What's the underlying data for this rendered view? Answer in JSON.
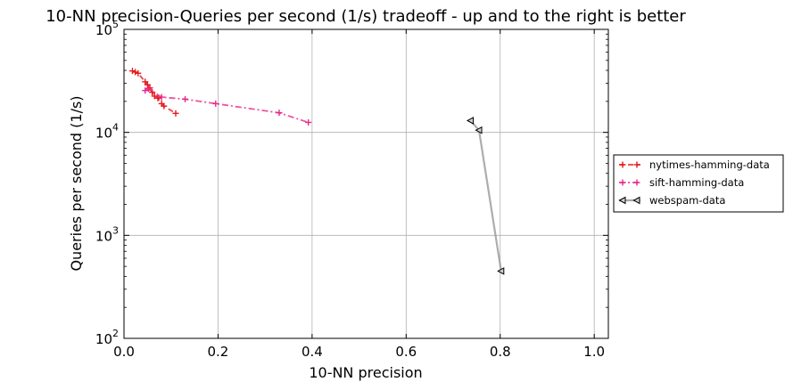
{
  "chart_data": {
    "type": "scatter",
    "title": "10-NN precision-Queries per second (1/s) tradeoff - up and to the right is better",
    "xlabel": "10-NN precision",
    "ylabel": "Queries per second (1/s)",
    "xlim": [
      0.0,
      1.03
    ],
    "ylim": [
      100,
      100000
    ],
    "yscale": "log",
    "grid": true,
    "legend_position": "right",
    "x_ticks": [
      {
        "value": 0.0,
        "label": "0.0"
      },
      {
        "value": 0.2,
        "label": "0.2"
      },
      {
        "value": 0.4,
        "label": "0.4"
      },
      {
        "value": 0.6,
        "label": "0.6"
      },
      {
        "value": 0.8,
        "label": "0.8"
      },
      {
        "value": 1.0,
        "label": "1.0"
      }
    ],
    "y_ticks": [
      {
        "value": 100,
        "base": "10",
        "exp": "2"
      },
      {
        "value": 1000,
        "base": "10",
        "exp": "3"
      },
      {
        "value": 10000,
        "base": "10",
        "exp": "4"
      },
      {
        "value": 100000,
        "base": "10",
        "exp": "5"
      }
    ],
    "series": [
      {
        "name": "nytimes-hamming-data",
        "color": "#e41a1c",
        "marker": "plus",
        "line": "dashed",
        "points": [
          {
            "x": 0.018,
            "y": 39500
          },
          {
            "x": 0.024,
            "y": 38500
          },
          {
            "x": 0.03,
            "y": 37500
          },
          {
            "x": 0.045,
            "y": 31000
          },
          {
            "x": 0.05,
            "y": 29000
          },
          {
            "x": 0.055,
            "y": 27000
          },
          {
            "x": 0.06,
            "y": 24500
          },
          {
            "x": 0.065,
            "y": 22500
          },
          {
            "x": 0.072,
            "y": 21500
          },
          {
            "x": 0.08,
            "y": 19000
          },
          {
            "x": 0.085,
            "y": 18000
          },
          {
            "x": 0.11,
            "y": 15300
          }
        ]
      },
      {
        "name": "sift-hamming-data",
        "color": "#e7298a",
        "marker": "plus",
        "line": "dashdot",
        "points": [
          {
            "x": 0.045,
            "y": 25500
          },
          {
            "x": 0.052,
            "y": 26500
          },
          {
            "x": 0.08,
            "y": 22000
          },
          {
            "x": 0.13,
            "y": 21000
          },
          {
            "x": 0.195,
            "y": 19000
          },
          {
            "x": 0.33,
            "y": 15500
          },
          {
            "x": 0.392,
            "y": 12500
          }
        ]
      },
      {
        "name": "webspam-data",
        "color": "#999999",
        "marker": "triangle-left",
        "line": "solid",
        "points": [
          {
            "x": 0.737,
            "y": 13000
          },
          {
            "x": 0.755,
            "y": 10500
          },
          {
            "x": 0.802,
            "y": 450
          }
        ]
      }
    ]
  }
}
